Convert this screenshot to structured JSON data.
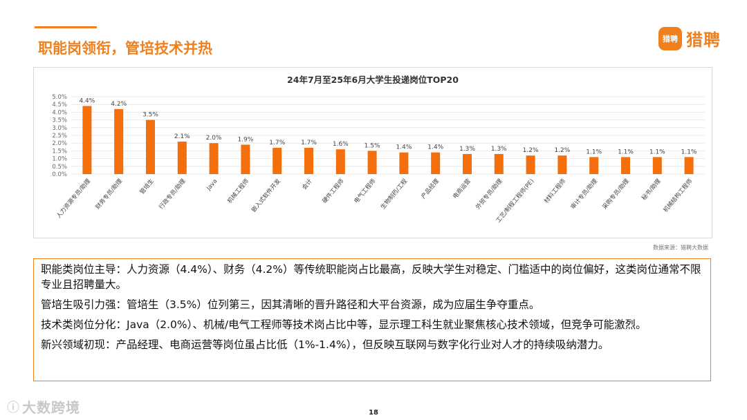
{
  "header": {
    "title": "职能岗领衔，管培技术并热",
    "brand_badge": "猎聘",
    "brand_name": "猎聘"
  },
  "colors": {
    "accent": "#f07f1d",
    "bar": "#f46e0c"
  },
  "chart_data": {
    "type": "bar",
    "title": "24年7月至25年6月大学生投递岗位TOP20",
    "categories": [
      "人力资源专员/助理",
      "财务专员/助理",
      "管培生",
      "行政专员/助理",
      "Java",
      "机械工程师",
      "嵌入式软件开发",
      "会计",
      "硬件工程师",
      "电气工程师",
      "生物制药/工程",
      "产品经理",
      "电商运营",
      "外贸专员/助理",
      "工艺/制程工程师(PE)",
      "材料工程师",
      "审计专员/助理",
      "采购专员/助理",
      "秘书/助理",
      "机械结构工程师"
    ],
    "values": [
      4.4,
      4.2,
      3.5,
      2.1,
      2.0,
      1.9,
      1.7,
      1.7,
      1.6,
      1.5,
      1.4,
      1.4,
      1.3,
      1.3,
      1.2,
      1.2,
      1.1,
      1.1,
      1.1,
      1.1
    ],
    "data_labels": [
      "4.4%",
      "4.2%",
      "3.5%",
      "2.1%",
      "2.0%",
      "1.9%",
      "1.7%",
      "1.7%",
      "1.6%",
      "1.5%",
      "1.4%",
      "1.4%",
      "1.3%",
      "1.3%",
      "1.2%",
      "1.2%",
      "1.1%",
      "1.1%",
      "1.1%",
      "1.1%"
    ],
    "ylim": [
      0,
      5.0
    ],
    "yticks": [
      "0.0%",
      "0.5%",
      "1.0%",
      "1.5%",
      "2.0%",
      "2.5%",
      "3.0%",
      "3.5%",
      "4.0%",
      "4.5%",
      "5.0%"
    ],
    "grid": true,
    "legend": "none"
  },
  "source": "数据来源：猎聘大数据",
  "summary": [
    "职能类岗位主导：人力资源（4.4%）、财务（4.2%）等传统职能岗占比最高，反映大学生对稳定、门槛适中的岗位偏好，这类岗位通常不限专业且招聘量大。",
    "管培生吸引力强：管培生（3.5%）位列第三，因其清晰的晋升路径和大平台资源，成为应届生争夺重点。",
    "技术类岗位分化：Java（2.0%）、机械/电气工程师等技术岗占比中等，显示理工科生就业聚焦核心技术领域，但竞争可能激烈。",
    "新兴领域初现：产品经理、电商运营等岗位虽占比低（1%-1.4%），但反映互联网与数字化行业对人才的持续吸纳潜力。"
  ],
  "footer": {
    "logo_text": "大数跨境",
    "page_number": "18"
  }
}
